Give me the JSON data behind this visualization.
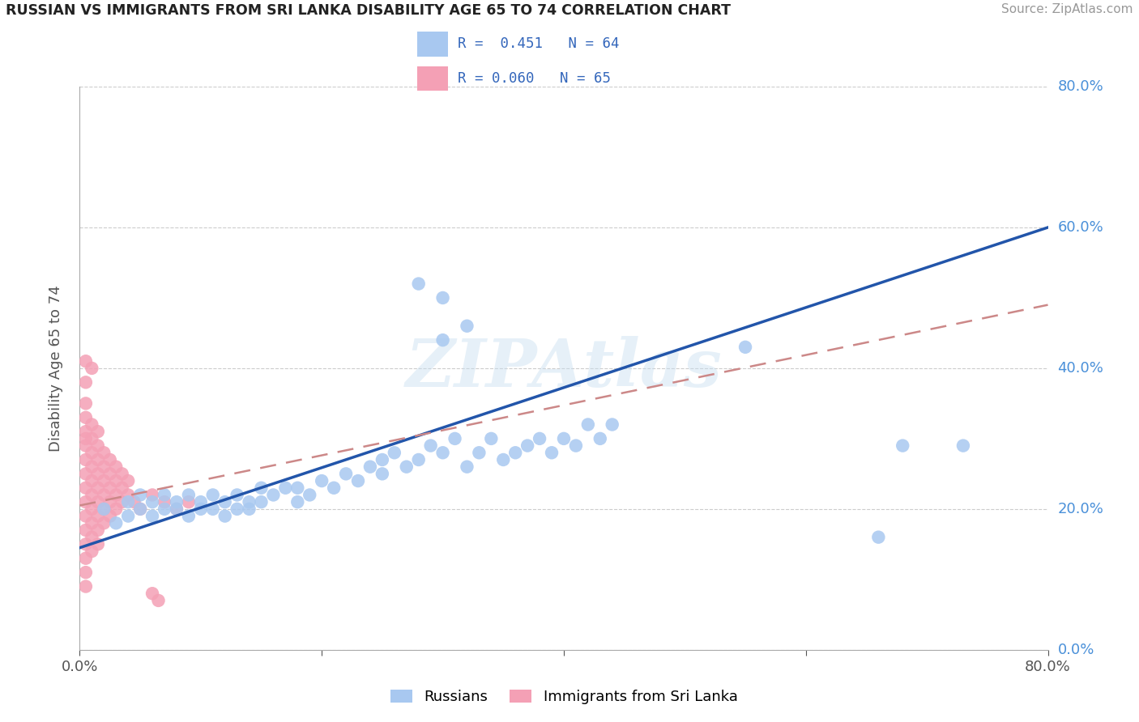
{
  "title": "RUSSIAN VS IMMIGRANTS FROM SRI LANKA DISABILITY AGE 65 TO 74 CORRELATION CHART",
  "source": "Source: ZipAtlas.com",
  "ylabel": "Disability Age 65 to 74",
  "watermark": "ZIPAtlas",
  "xlim": [
    0.0,
    0.8
  ],
  "ylim": [
    0.0,
    0.8
  ],
  "color_blue": "#a8c8f0",
  "color_pink": "#f4a0b5",
  "line_blue": "#2255aa",
  "line_pink": "#cc8888",
  "blue_scatter": [
    [
      0.02,
      0.2
    ],
    [
      0.03,
      0.18
    ],
    [
      0.04,
      0.19
    ],
    [
      0.04,
      0.21
    ],
    [
      0.05,
      0.2
    ],
    [
      0.05,
      0.22
    ],
    [
      0.06,
      0.19
    ],
    [
      0.06,
      0.21
    ],
    [
      0.07,
      0.2
    ],
    [
      0.07,
      0.22
    ],
    [
      0.08,
      0.2
    ],
    [
      0.08,
      0.21
    ],
    [
      0.09,
      0.19
    ],
    [
      0.09,
      0.22
    ],
    [
      0.1,
      0.2
    ],
    [
      0.1,
      0.21
    ],
    [
      0.11,
      0.2
    ],
    [
      0.11,
      0.22
    ],
    [
      0.12,
      0.19
    ],
    [
      0.12,
      0.21
    ],
    [
      0.13,
      0.2
    ],
    [
      0.13,
      0.22
    ],
    [
      0.14,
      0.2
    ],
    [
      0.14,
      0.21
    ],
    [
      0.15,
      0.21
    ],
    [
      0.15,
      0.23
    ],
    [
      0.16,
      0.22
    ],
    [
      0.17,
      0.23
    ],
    [
      0.18,
      0.21
    ],
    [
      0.18,
      0.23
    ],
    [
      0.19,
      0.22
    ],
    [
      0.2,
      0.24
    ],
    [
      0.21,
      0.23
    ],
    [
      0.22,
      0.25
    ],
    [
      0.23,
      0.24
    ],
    [
      0.24,
      0.26
    ],
    [
      0.25,
      0.25
    ],
    [
      0.25,
      0.27
    ],
    [
      0.26,
      0.28
    ],
    [
      0.27,
      0.26
    ],
    [
      0.28,
      0.27
    ],
    [
      0.29,
      0.29
    ],
    [
      0.3,
      0.28
    ],
    [
      0.31,
      0.3
    ],
    [
      0.32,
      0.26
    ],
    [
      0.33,
      0.28
    ],
    [
      0.34,
      0.3
    ],
    [
      0.35,
      0.27
    ],
    [
      0.36,
      0.28
    ],
    [
      0.37,
      0.29
    ],
    [
      0.38,
      0.3
    ],
    [
      0.39,
      0.28
    ],
    [
      0.4,
      0.3
    ],
    [
      0.41,
      0.29
    ],
    [
      0.42,
      0.32
    ],
    [
      0.43,
      0.3
    ],
    [
      0.44,
      0.32
    ],
    [
      0.3,
      0.44
    ],
    [
      0.32,
      0.46
    ],
    [
      0.55,
      0.43
    ],
    [
      0.28,
      0.52
    ],
    [
      0.3,
      0.5
    ],
    [
      0.66,
      0.16
    ],
    [
      0.68,
      0.29
    ],
    [
      0.73,
      0.29
    ]
  ],
  "pink_scatter": [
    [
      0.005,
      0.29
    ],
    [
      0.005,
      0.27
    ],
    [
      0.005,
      0.25
    ],
    [
      0.005,
      0.23
    ],
    [
      0.005,
      0.21
    ],
    [
      0.005,
      0.19
    ],
    [
      0.005,
      0.17
    ],
    [
      0.005,
      0.15
    ],
    [
      0.005,
      0.13
    ],
    [
      0.005,
      0.11
    ],
    [
      0.005,
      0.09
    ],
    [
      0.005,
      0.3
    ],
    [
      0.005,
      0.31
    ],
    [
      0.005,
      0.33
    ],
    [
      0.005,
      0.35
    ],
    [
      0.01,
      0.28
    ],
    [
      0.01,
      0.26
    ],
    [
      0.01,
      0.24
    ],
    [
      0.01,
      0.22
    ],
    [
      0.01,
      0.2
    ],
    [
      0.01,
      0.18
    ],
    [
      0.01,
      0.16
    ],
    [
      0.01,
      0.14
    ],
    [
      0.01,
      0.3
    ],
    [
      0.01,
      0.32
    ],
    [
      0.015,
      0.27
    ],
    [
      0.015,
      0.25
    ],
    [
      0.015,
      0.23
    ],
    [
      0.015,
      0.21
    ],
    [
      0.015,
      0.19
    ],
    [
      0.015,
      0.17
    ],
    [
      0.015,
      0.15
    ],
    [
      0.015,
      0.29
    ],
    [
      0.015,
      0.31
    ],
    [
      0.02,
      0.26
    ],
    [
      0.02,
      0.24
    ],
    [
      0.02,
      0.22
    ],
    [
      0.02,
      0.2
    ],
    [
      0.02,
      0.18
    ],
    [
      0.02,
      0.28
    ],
    [
      0.025,
      0.25
    ],
    [
      0.025,
      0.23
    ],
    [
      0.025,
      0.21
    ],
    [
      0.025,
      0.19
    ],
    [
      0.025,
      0.27
    ],
    [
      0.03,
      0.24
    ],
    [
      0.03,
      0.22
    ],
    [
      0.03,
      0.2
    ],
    [
      0.03,
      0.26
    ],
    [
      0.035,
      0.23
    ],
    [
      0.035,
      0.21
    ],
    [
      0.035,
      0.25
    ],
    [
      0.04,
      0.22
    ],
    [
      0.04,
      0.24
    ],
    [
      0.045,
      0.21
    ],
    [
      0.05,
      0.2
    ],
    [
      0.06,
      0.22
    ],
    [
      0.07,
      0.21
    ],
    [
      0.08,
      0.2
    ],
    [
      0.09,
      0.21
    ],
    [
      0.005,
      0.38
    ],
    [
      0.01,
      0.4
    ],
    [
      0.005,
      0.41
    ],
    [
      0.06,
      0.08
    ],
    [
      0.065,
      0.07
    ]
  ],
  "blue_line_x0": 0.0,
  "blue_line_y0": 0.145,
  "blue_line_x1": 0.8,
  "blue_line_y1": 0.6,
  "pink_line_x0": 0.0,
  "pink_line_y0": 0.205,
  "pink_line_x1": 0.8,
  "pink_line_y1": 0.49
}
